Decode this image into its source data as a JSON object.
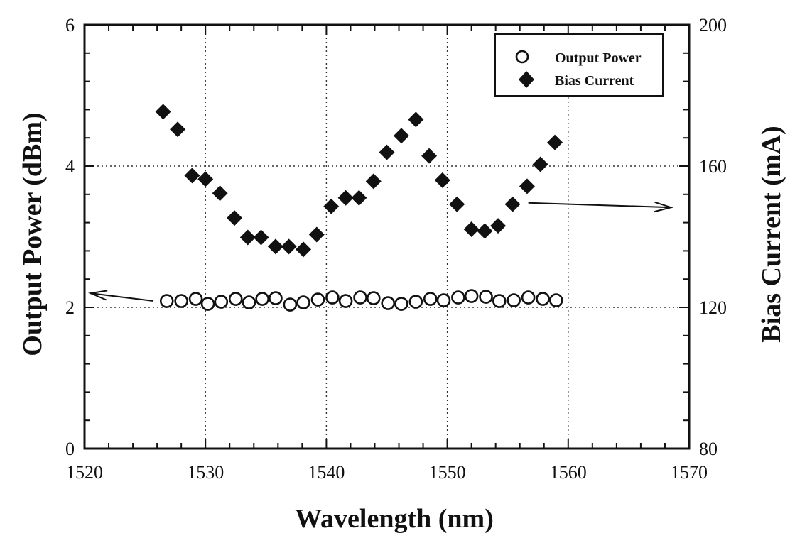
{
  "chart_data": {
    "type": "scatter",
    "title": "",
    "xlabel": "Wavelength (nm)",
    "ylabel_left": "Output Power (dBm)",
    "ylabel_right": "Bias Current (mA)",
    "xlim": [
      1520,
      1570
    ],
    "ylim_left": [
      0,
      6
    ],
    "ylim_right": [
      80,
      200
    ],
    "x_ticks": [
      "1520",
      "1530",
      "1540",
      "1550",
      "1560",
      "1570"
    ],
    "y_left_ticks": [
      "0",
      "2",
      "4",
      "6"
    ],
    "y_right_ticks": [
      "80",
      "120",
      "160",
      "200"
    ],
    "grid": true,
    "legend_position": "top-right",
    "series": [
      {
        "name": "Output Power",
        "axis": "left",
        "marker": "open-circle",
        "points": [
          [
            1526.8,
            2.09
          ],
          [
            1528.0,
            2.09
          ],
          [
            1529.2,
            2.12
          ],
          [
            1530.2,
            2.05
          ],
          [
            1531.3,
            2.08
          ],
          [
            1532.5,
            2.12
          ],
          [
            1533.6,
            2.07
          ],
          [
            1534.7,
            2.12
          ],
          [
            1535.8,
            2.13
          ],
          [
            1537.0,
            2.04
          ],
          [
            1538.1,
            2.07
          ],
          [
            1539.3,
            2.11
          ],
          [
            1540.5,
            2.14
          ],
          [
            1541.6,
            2.09
          ],
          [
            1542.8,
            2.14
          ],
          [
            1543.9,
            2.13
          ],
          [
            1545.1,
            2.06
          ],
          [
            1546.2,
            2.05
          ],
          [
            1547.4,
            2.08
          ],
          [
            1548.6,
            2.12
          ],
          [
            1549.7,
            2.1
          ],
          [
            1550.9,
            2.14
          ],
          [
            1552.0,
            2.16
          ],
          [
            1553.2,
            2.15
          ],
          [
            1554.3,
            2.09
          ],
          [
            1555.5,
            2.1
          ],
          [
            1556.7,
            2.14
          ],
          [
            1557.9,
            2.12
          ],
          [
            1559.0,
            2.1
          ]
        ]
      },
      {
        "name": "Bias Current",
        "axis": "right",
        "marker": "filled-diamond",
        "points": [
          [
            1526.5,
            175.4
          ],
          [
            1527.7,
            170.4
          ],
          [
            1528.9,
            157.3
          ],
          [
            1530.0,
            156.3
          ],
          [
            1531.2,
            152.3
          ],
          [
            1532.4,
            145.3
          ],
          [
            1533.5,
            139.8
          ],
          [
            1534.6,
            139.8
          ],
          [
            1535.8,
            137.2
          ],
          [
            1536.9,
            137.2
          ],
          [
            1538.1,
            136.4
          ],
          [
            1539.2,
            140.6
          ],
          [
            1540.4,
            148.6
          ],
          [
            1541.6,
            151.0
          ],
          [
            1542.7,
            151.0
          ],
          [
            1543.9,
            155.7
          ],
          [
            1545.0,
            163.9
          ],
          [
            1546.2,
            168.6
          ],
          [
            1547.4,
            173.2
          ],
          [
            1548.5,
            162.9
          ],
          [
            1549.6,
            156.0
          ],
          [
            1550.8,
            149.2
          ],
          [
            1552.0,
            142.1
          ],
          [
            1553.1,
            141.6
          ],
          [
            1554.2,
            143.1
          ],
          [
            1555.4,
            149.2
          ],
          [
            1556.6,
            154.3
          ],
          [
            1557.7,
            160.5
          ],
          [
            1558.9,
            166.7
          ]
        ]
      }
    ],
    "annotations": [
      {
        "type": "arrow",
        "points_to": "left-axis",
        "from": [
          1540.5,
          2.14
        ]
      },
      {
        "type": "arrow",
        "points_to": "right-axis",
        "from": [
          1555.5,
          149.2
        ]
      }
    ]
  }
}
